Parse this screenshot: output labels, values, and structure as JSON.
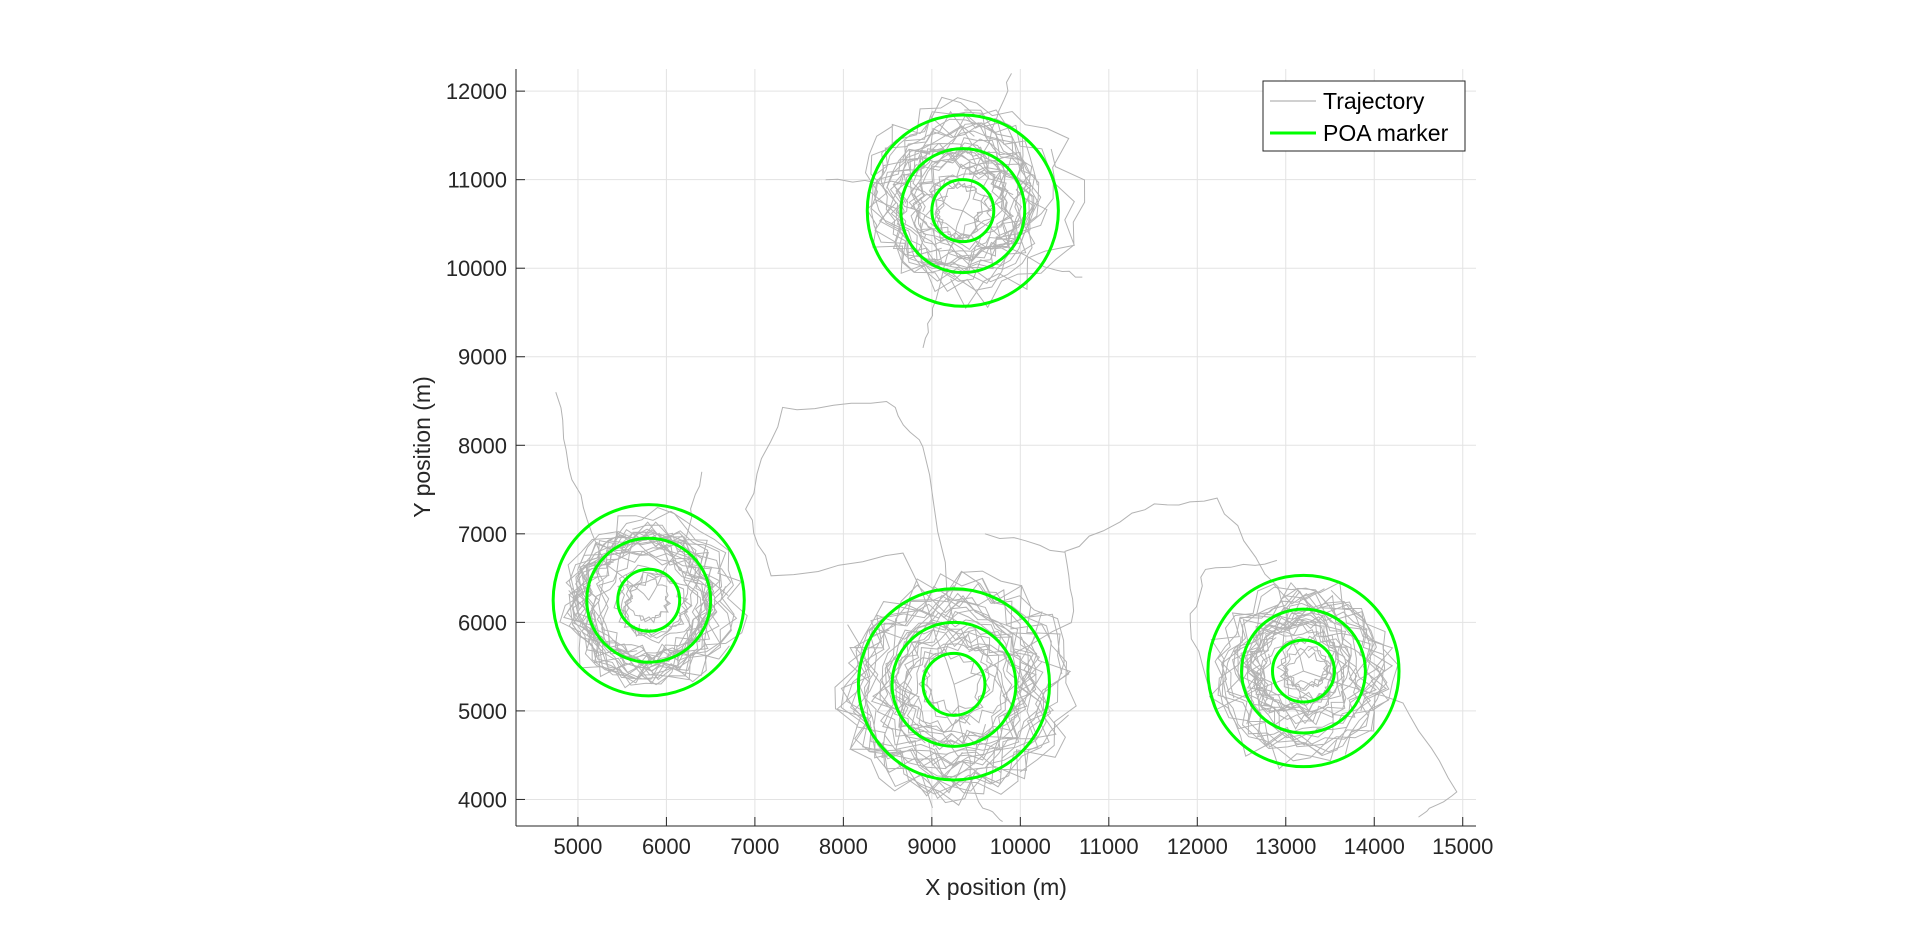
{
  "chart_data": {
    "type": "line",
    "title": "",
    "xlabel": "X position (m)",
    "ylabel": "Y position (m)",
    "xlim": [
      4300,
      15150
    ],
    "ylim": [
      3700,
      12250
    ],
    "xticks": [
      5000,
      6000,
      7000,
      8000,
      9000,
      10000,
      11000,
      12000,
      13000,
      14000,
      15000
    ],
    "yticks": [
      4000,
      5000,
      6000,
      7000,
      8000,
      9000,
      10000,
      11000,
      12000
    ],
    "grid": true,
    "legend": {
      "placement": "top-right",
      "entries": [
        "Trajectory",
        "POA marker"
      ]
    },
    "colors": {
      "trajectory": "#b3b3b3",
      "poa_marker": "#00ff00",
      "grid": "#e3e3e3",
      "axis": "#262626"
    },
    "series": [
      {
        "name": "POA marker",
        "kind": "concentric-circles",
        "centers": [
          {
            "x": 5800,
            "y": 6250
          },
          {
            "x": 9350,
            "y": 10650
          },
          {
            "x": 9250,
            "y": 5300
          },
          {
            "x": 13200,
            "y": 5450
          }
        ],
        "radii": [
          350,
          700,
          1080
        ]
      },
      {
        "name": "Trajectory",
        "kind": "path",
        "loiter_clusters": [
          {
            "x": 5800,
            "y": 6250,
            "spread": 900
          },
          {
            "x": 9350,
            "y": 10750,
            "spread": 1150
          },
          {
            "x": 9250,
            "y": 5250,
            "spread": 1150
          },
          {
            "x": 13200,
            "y": 5450,
            "spread": 900
          }
        ],
        "transits": [
          [
            [
              5800,
              6250
            ],
            [
              5300,
              6700
            ],
            [
              4950,
              7600
            ],
            [
              4750,
              8600
            ]
          ],
          [
            [
              5800,
              6250
            ],
            [
              6200,
              6900
            ],
            [
              6400,
              7700
            ]
          ],
          [
            [
              9250,
              5300
            ],
            [
              8700,
              6800
            ],
            [
              7200,
              6500
            ],
            [
              6900,
              7300
            ],
            [
              7300,
              8400
            ],
            [
              8500,
              8500
            ],
            [
              8900,
              8000
            ],
            [
              9250,
              6000
            ]
          ],
          [
            [
              9250,
              5300
            ],
            [
              10600,
              6000
            ],
            [
              10500,
              6800
            ],
            [
              9600,
              7000
            ]
          ],
          [
            [
              13200,
              5450
            ],
            [
              12200,
              5000
            ],
            [
              11900,
              6000
            ],
            [
              12100,
              6600
            ],
            [
              12900,
              6700
            ]
          ],
          [
            [
              13200,
              5450
            ],
            [
              12900,
              6400
            ],
            [
              12200,
              7400
            ],
            [
              11400,
              7300
            ],
            [
              10500,
              6800
            ]
          ],
          [
            [
              13200,
              5450
            ],
            [
              14300,
              5100
            ],
            [
              14950,
              4100
            ],
            [
              14500,
              3800
            ]
          ],
          [
            [
              9350,
              10650
            ],
            [
              8700,
              10950
            ],
            [
              7800,
              11000
            ]
          ],
          [
            [
              9350,
              10650
            ],
            [
              10200,
              10050
            ],
            [
              10700,
              9900
            ]
          ],
          [
            [
              9350,
              10650
            ],
            [
              9700,
              11600
            ],
            [
              9900,
              12200
            ]
          ],
          [
            [
              9350,
              10650
            ],
            [
              9050,
              9650
            ],
            [
              8900,
              9100
            ]
          ],
          [
            [
              9250,
              5300
            ],
            [
              9500,
              4000
            ],
            [
              9800,
              3750
            ]
          ]
        ]
      }
    ]
  }
}
